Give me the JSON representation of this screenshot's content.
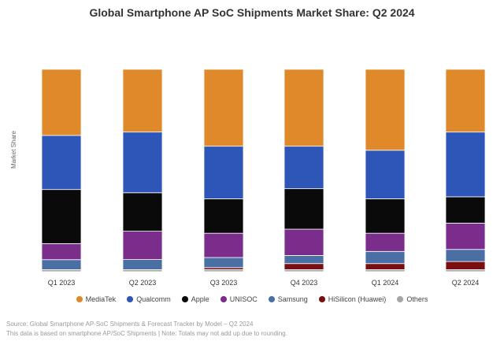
{
  "chart_data": {
    "type": "bar",
    "stacked": true,
    "title": "Global Smartphone AP SoC Shipments Market Share: Q2 2024",
    "xlabel": "",
    "ylabel": "Market Share",
    "ylim": [
      0,
      100
    ],
    "grid": false,
    "legend_position": "bottom",
    "categories": [
      "Q1 2023",
      "Q2 2023",
      "Q3 2023",
      "Q4 2023",
      "Q1 2024",
      "Q2 2024"
    ],
    "series": [
      {
        "name": "Others",
        "color": "#a6a6a6",
        "values": [
          1,
          1,
          1,
          1,
          1,
          1
        ]
      },
      {
        "name": "HiSilicon (Huawei)",
        "color": "#7a0f12",
        "values": [
          0,
          0,
          1,
          3,
          3,
          4
        ]
      },
      {
        "name": "Samsung",
        "color": "#4a6fa5",
        "values": [
          5,
          5,
          5,
          4,
          6,
          6
        ]
      },
      {
        "name": "UNISOC",
        "color": "#7b2d8b",
        "values": [
          8,
          14,
          12,
          13,
          9,
          13
        ]
      },
      {
        "name": "Apple",
        "color": "#0a0a0a",
        "values": [
          27,
          19,
          17,
          20,
          17,
          13
        ]
      },
      {
        "name": "Qualcomm",
        "color": "#2e55b8",
        "values": [
          27,
          30,
          26,
          21,
          24,
          32
        ]
      },
      {
        "name": "MediaTek",
        "color": "#e0892b",
        "values": [
          33,
          31,
          38,
          38,
          40,
          31
        ]
      }
    ]
  },
  "legend": [
    {
      "label": "MediaTek",
      "color": "#e0892b"
    },
    {
      "label": "Qualcomm",
      "color": "#2e55b8"
    },
    {
      "label": "Apple",
      "color": "#0a0a0a"
    },
    {
      "label": "UNISOC",
      "color": "#7b2d8b"
    },
    {
      "label": "Samsung",
      "color": "#4a6fa5"
    },
    {
      "label": "HiSilicon (Huawei)",
      "color": "#7a0f12"
    },
    {
      "label": "Others",
      "color": "#a6a6a6"
    }
  ],
  "footnotes": {
    "source": "Source: Global Smartphone AP-SoC Shipments & Forecast Tracker by Model – Q2 2024",
    "note": "This data is based on smartphone AP/SoC Shipments | Note: Totals may not add up due to rounding."
  }
}
